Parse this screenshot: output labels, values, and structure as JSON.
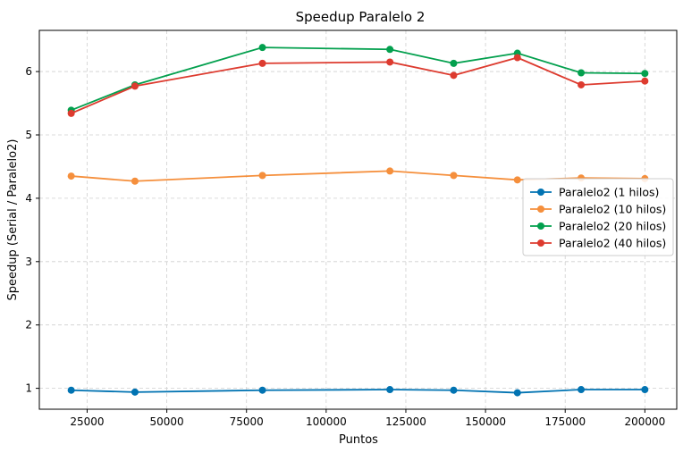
{
  "chart_data": {
    "type": "line",
    "title": "Speedup Paralelo 2",
    "xlabel": "Puntos",
    "ylabel": "Speedup (Serial / Paralelo2)",
    "x": [
      20000,
      40000,
      80000,
      120000,
      140000,
      160000,
      180000,
      200000
    ],
    "xlim": [
      10000,
      210000
    ],
    "ylim": [
      0.67,
      6.65
    ],
    "xticks": [
      25000,
      50000,
      75000,
      100000,
      125000,
      150000,
      175000,
      200000
    ],
    "yticks": [
      1,
      2,
      3,
      4,
      5,
      6
    ],
    "grid": true,
    "legend_position": "center-right",
    "series": [
      {
        "name": "Paralelo2 (1 hilos)",
        "color": "#0173b2",
        "values": [
          0.97,
          0.94,
          0.97,
          0.98,
          0.97,
          0.93,
          0.98,
          0.98
        ]
      },
      {
        "name": "Paralelo2 (10 hilos)",
        "color": "#f58f3c",
        "values": [
          4.35,
          4.27,
          4.36,
          4.43,
          4.36,
          4.29,
          4.32,
          4.31
        ]
      },
      {
        "name": "Paralelo2 (20 hilos)",
        "color": "#03a04e",
        "values": [
          5.39,
          5.79,
          6.38,
          6.35,
          6.13,
          6.29,
          5.98,
          5.97
        ]
      },
      {
        "name": "Paralelo2 (40 hilos)",
        "color": "#dd3b2f",
        "values": [
          5.34,
          5.77,
          6.13,
          6.15,
          5.94,
          6.22,
          5.79,
          5.85
        ]
      }
    ]
  }
}
